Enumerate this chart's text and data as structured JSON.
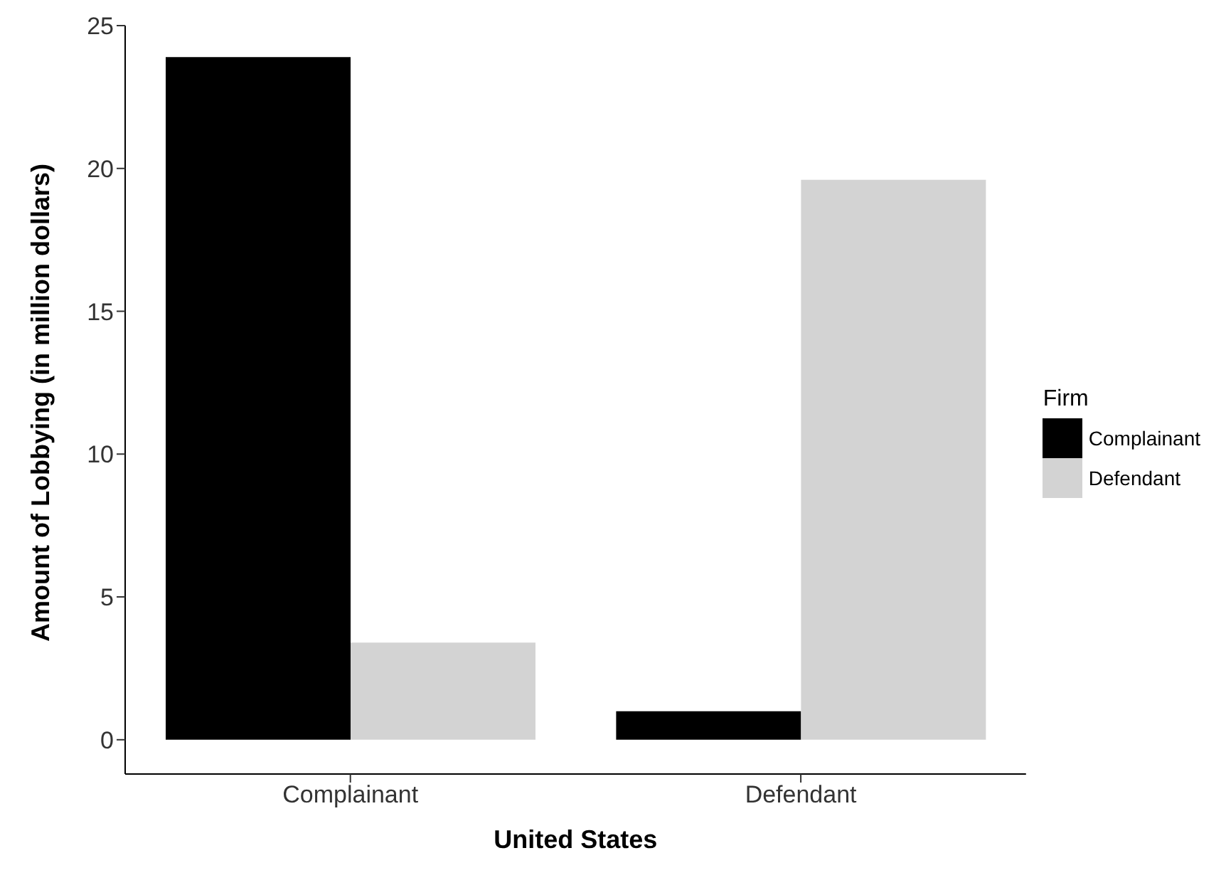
{
  "chart_data": {
    "type": "bar",
    "xlabel": "United States",
    "ylabel": "Amount of Lobbying (in million dollars)",
    "legend_title": "Firm",
    "categories": [
      "Complainant",
      "Defendant"
    ],
    "series": [
      {
        "name": "Complainant",
        "color": "#000000",
        "values": [
          23.9,
          1.0
        ]
      },
      {
        "name": "Defendant",
        "color": "#d3d3d3",
        "values": [
          3.4,
          19.6
        ]
      }
    ],
    "ylim": [
      -1.2,
      25
    ],
    "yticks": [
      0,
      5,
      10,
      15,
      20,
      25
    ],
    "grid": false,
    "legend": "right"
  }
}
